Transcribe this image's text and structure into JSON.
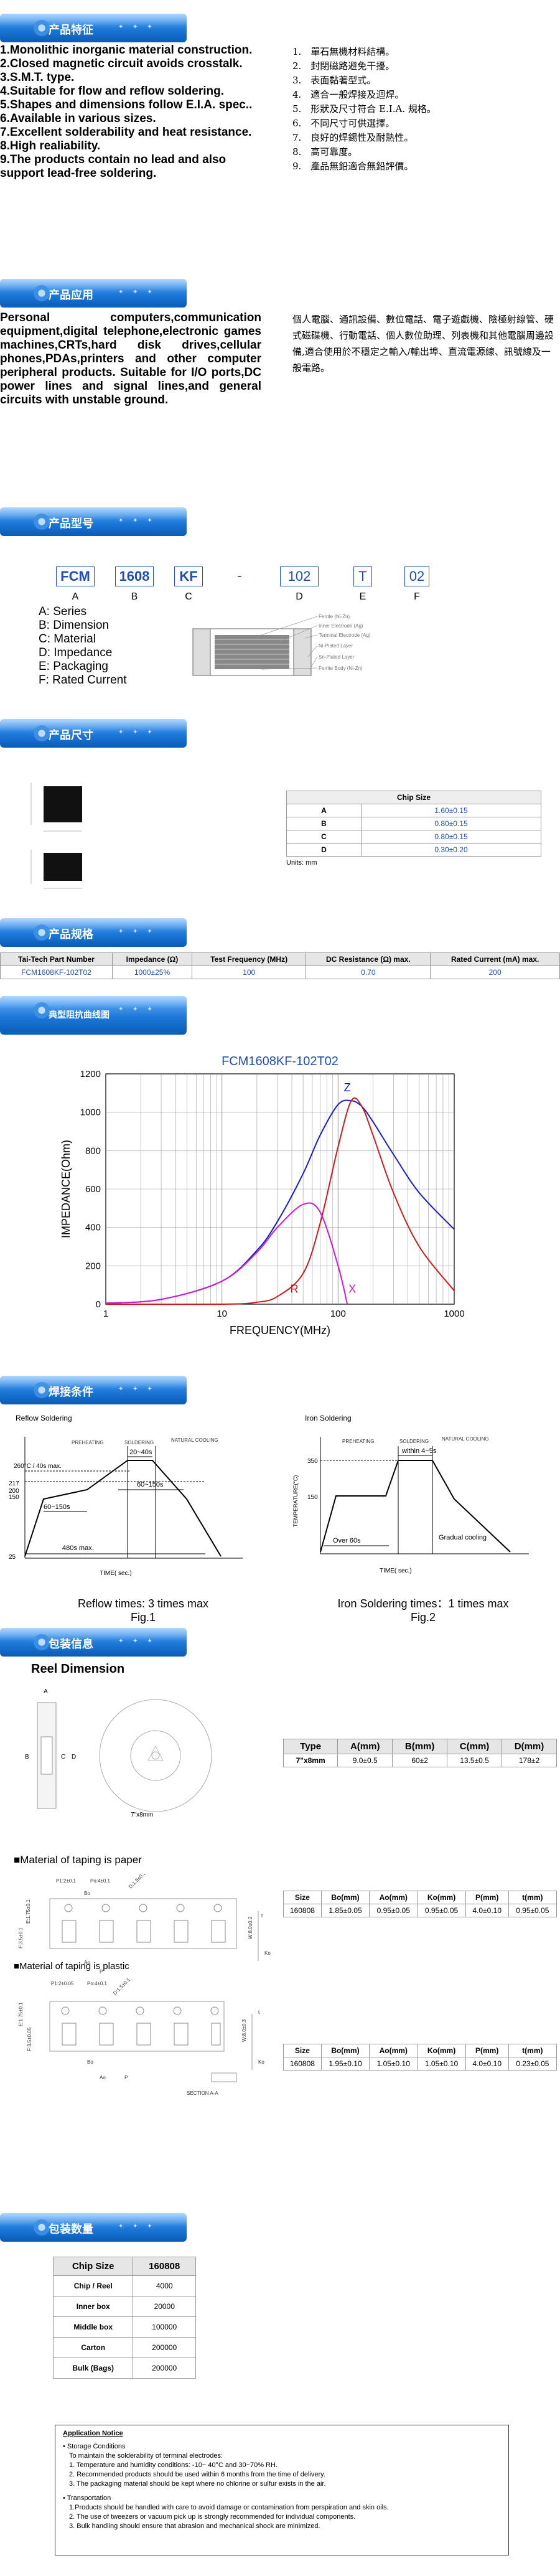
{
  "banners": {
    "features": "产品特征",
    "applications": "产品应用",
    "part_number": "产品型号",
    "dimensions": "产品尺寸",
    "specs": "产品规格",
    "typical": "典型阻抗曲线图",
    "soldering": "焊接条件",
    "packaging": "包装信息",
    "quantity": "包装数量"
  },
  "features_en": [
    "1.Monolithic inorganic material construction.",
    "2.Closed magnetic circuit avoids crosstalk.",
    "3.S.M.T. type.",
    "4.Suitable for flow and reflow soldering.",
    "5.Shapes and dimensions follow E.I.A. spec..",
    "6.Available in various sizes.",
    "7.Excellent solderability and heat resistance.",
    "8.High realiability.",
    "9.The products contain no lead and also support lead-free soldering."
  ],
  "features_zh": [
    "1.　單石無機材料結構。",
    "2.　封閉磁路避免干擾。",
    "3.　表面黏著型式。",
    "4.　適合一般焊接及迴焊。",
    "5.　形狀及尺寸符合 E.I.A. 規格。",
    "6.　不同尺寸可供選擇。",
    "7.　良好的焊錫性及耐熱性。",
    "8.　高可靠度。",
    "9.　產品無鉛適合無鉛評價。"
  ],
  "applications_en": "Personal computers,communication equipment,digital telephone,electronic games machines,CRTs,hard disk drives,cellular phones,PDAs,printers and other computer peripheral products. Suitable for I/O ports,DC power lines and signal lines,and general circuits with unstable ground.",
  "applications_zh": "個人電腦、通訊設備、數位電話、電子遊戲機、陰極射線管、硬式磁碟機、行動電話、個人數位助理、列表機和其他電腦周邊設備,適合使用於不穩定之輸入/輸出埠、直流電源線、訊號線及一般電路。",
  "part_number": {
    "codes": [
      "FCM",
      "1608",
      "KF",
      "-",
      "102",
      "T",
      "02"
    ],
    "letters": [
      "A",
      "B",
      "C",
      "",
      "D",
      "E",
      "F"
    ],
    "legend": [
      "A: Series",
      "B: Dimension",
      "C: Material",
      "D: Impedance",
      "E: Packaging",
      "F: Rated Current"
    ],
    "callouts": [
      "Ferrite (Ni-Zn)",
      "Inner Electrode (Ag)",
      "Terminal Electrode (Ag)",
      "Ni-Plated Layer",
      "Sn-Plated Layer",
      "Ferrite Body (Ni-Zn)"
    ]
  },
  "chip_size": {
    "title": "Chip Size",
    "rows": [
      [
        "A",
        "1.60±0.15"
      ],
      [
        "B",
        "0.80±0.15"
      ],
      [
        "C",
        "0.80±0.15"
      ],
      [
        "D",
        "0.30±0.20"
      ]
    ],
    "units": "Units: mm"
  },
  "spec_table": {
    "headers": [
      "Tai-Tech Part Number",
      "Impedance (Ω)",
      "Test Frequency (MHz)",
      "DC Resistance (Ω) max.",
      "Rated Current (mA) max."
    ],
    "row": [
      "FCM1608KF-102T02",
      "1000±25%",
      "100",
      "0.70",
      "200"
    ]
  },
  "chart_data": {
    "type": "line",
    "title": "FCM1608KF-102T02",
    "xlabel": "FREQUENCY(MHz)",
    "ylabel": "IMPEDANCE(Ohm)",
    "xscale": "log",
    "xlim": [
      1,
      1000
    ],
    "ylim": [
      0,
      1200
    ],
    "xticks": [
      "1",
      "10",
      "100",
      "1000"
    ],
    "yticks": [
      0,
      200,
      400,
      600,
      800,
      1000,
      1200
    ],
    "series": [
      {
        "name": "Z",
        "color": "#1a1ad0",
        "x": [
          1,
          3,
          10,
          20,
          30,
          50,
          70,
          100,
          130,
          160,
          200,
          300,
          500,
          1000
        ],
        "y": [
          5,
          25,
          120,
          280,
          430,
          680,
          880,
          1040,
          1060,
          1030,
          950,
          780,
          580,
          390
        ]
      },
      {
        "name": "R",
        "color": "#d01a1a",
        "x": [
          1,
          10,
          20,
          30,
          50,
          70,
          100,
          130,
          160,
          200,
          300,
          500,
          1000
        ],
        "y": [
          0,
          0,
          10,
          40,
          160,
          420,
          820,
          1060,
          1030,
          880,
          580,
          300,
          70
        ]
      },
      {
        "name": "X",
        "color": "#d01ad0",
        "x": [
          1,
          3,
          10,
          20,
          30,
          50,
          70,
          100,
          120
        ],
        "y": [
          5,
          25,
          120,
          270,
          400,
          520,
          480,
          200,
          0
        ]
      }
    ]
  },
  "reflow": {
    "title": "Reflow Soldering",
    "labels": [
      "PREHEATING",
      "SOLDERING",
      "NATURAL COOLING",
      "20~40s",
      "60~150s",
      "60~150s",
      "480s max.",
      "TIME( sec.)",
      "260°C / 40s max.",
      "217",
      "200",
      "150",
      "25"
    ],
    "caption": "Reflow times: 3 times max",
    "fig": "Fig.1"
  },
  "iron": {
    "title": "Iron Soldering",
    "labels": [
      "PREHEATING",
      "SOLDERING",
      "NATURAL COOLING",
      "within 4~5s",
      "Over 60s",
      "Gradual cooling",
      "TIME( sec.)",
      "350",
      "150",
      "TEMPERATURE(°C)"
    ],
    "caption": "Iron Soldering times：1 times max",
    "fig": "Fig.2"
  },
  "reel": {
    "title": "Reel Dimension",
    "caption": "7\"x8mm",
    "headers": [
      "Type",
      "A(mm)",
      "B(mm)",
      "C(mm)",
      "D(mm)"
    ],
    "row": [
      "7\"x8mm",
      "9.0±0.5",
      "60±2",
      "13.5±0.5",
      "178±2"
    ],
    "letters": [
      "A",
      "B",
      "C",
      "D"
    ]
  },
  "paper": {
    "title": "■Material of taping is paper",
    "headers": [
      "Size",
      "Bo(mm)",
      "Ao(mm)",
      "Ko(mm)",
      "P(mm)",
      "t(mm)"
    ],
    "row": [
      "160808",
      "1.85±0.05",
      "0.95±0.05",
      "0.95±0.05",
      "4.0±0.10",
      "0.95±0.05"
    ],
    "labels": [
      "P1:2±0.1",
      "Po:4±0.1",
      "Bo",
      "D:1.5±0.1",
      "Ao",
      "F:3.5±0.1",
      "E:1.75±0.1",
      "W:8.0±0.2",
      "P",
      "Ko",
      "t"
    ]
  },
  "plastic": {
    "title": "■Material of taping is plastic",
    "headers": [
      "Size",
      "Bo(mm)",
      "Ao(mm)",
      "Ko(mm)",
      "P(mm)",
      "t(mm)"
    ],
    "row": [
      "160808",
      "1.95±0.10",
      "1.05±0.10",
      "1.05±0.10",
      "4.0±0.10",
      "0.23±0.05"
    ],
    "labels": [
      "P1:2±0.05",
      "Po:4±0.1",
      "D:1.5±0.1",
      "E:1.75±0.1",
      "F:3.5±0.05",
      "W:8.0±0.3",
      "Bo",
      "Ao",
      "P",
      "Ko",
      "t",
      "SECTION A-A"
    ]
  },
  "quantity": {
    "headers": [
      "Chip Size",
      "160808"
    ],
    "rows": [
      [
        "Chip / Reel",
        "4000"
      ],
      [
        "Inner box",
        "20000"
      ],
      [
        "Middle box",
        "100000"
      ],
      [
        "Carton",
        "200000"
      ],
      [
        "Bulk (Bags)",
        "200000"
      ]
    ]
  },
  "notice": {
    "title": "Application Notice",
    "storage_title": "• Storage Conditions",
    "storage_intro": "To maintain the solderability of terminal electrodes:",
    "storage": [
      "1. Temperature and humidity conditions: -10~ 40°C and 30~70% RH.",
      "2. Recommended products should be used within 6 months from the time of delivery.",
      "3. The packaging material should be kept where no chlorine or sulfur exists in the air."
    ],
    "transport_title": "• Transportation",
    "transport": [
      "1.Products should be handled with care to avoid damage or contamination from perspiration and skin oils.",
      "2. The use of tweezers or vacuum pick up is strongly recommended for individual components.",
      "3. Bulk handling should ensure that abrasion and mechanical shock are minimized."
    ]
  }
}
